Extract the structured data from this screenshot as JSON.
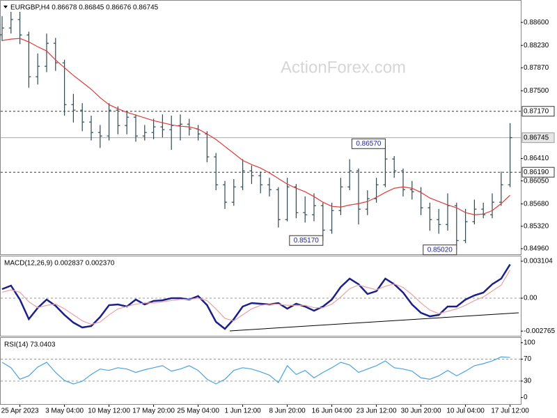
{
  "chart_data": [
    {
      "type": "ohlc",
      "title": "EURGBP,H4  0.86678 0.86845 0.86676 0.86745",
      "watermark": "ActionForex.com",
      "categories": [
        null,
        null,
        "25 Apr 2023",
        null,
        null,
        null,
        null,
        "3 May 04:00",
        null,
        null,
        null,
        null,
        "10 May 12:00",
        null,
        null,
        null,
        null,
        "17 May 20:00",
        null,
        null,
        null,
        null,
        "25 May 04:00",
        null,
        null,
        null,
        null,
        "1 Jun 12:00",
        null,
        null,
        null,
        null,
        "8 Jun 20:00",
        null,
        null,
        null,
        null,
        "16 Jun 04:00",
        null,
        null,
        null,
        null,
        "23 Jun 12:00",
        null,
        null,
        null,
        null,
        "30 Jun 20:00",
        null,
        null,
        null,
        null,
        "10 Jul 04:00",
        null,
        null,
        null,
        null,
        "17 Jul 12:00"
      ],
      "open": [
        0.884,
        0.8851,
        0.88645,
        0.88398,
        0.87726,
        0.87894,
        0.88264,
        0.8795,
        0.87277,
        0.87188,
        0.86997,
        0.86829,
        0.86773,
        0.87188,
        0.86941,
        0.87075,
        0.86773,
        0.86829,
        0.86919,
        0.86874,
        0.86941,
        0.86963,
        0.86885,
        0.86806,
        0.86437,
        0.85988,
        0.85708,
        0.85954,
        0.86212,
        0.86134,
        0.85988,
        0.8591,
        0.85428,
        0.85954,
        0.8554,
        0.85506,
        0.85652,
        0.85259,
        0.85573,
        0.85954,
        0.86212,
        0.85596,
        0.85764,
        0.85988,
        0.86403,
        0.86212,
        0.8591,
        0.85876,
        0.85618,
        0.85428,
        0.85349,
        0.85652,
        0.85091,
        0.85394,
        0.85596,
        0.85506,
        0.85708,
        0.85988
      ],
      "high": [
        0.887,
        0.889,
        0.8878,
        0.8845,
        0.881,
        0.8842,
        0.8835,
        0.88,
        0.8745,
        0.873,
        0.871,
        0.8695,
        0.873,
        0.8725,
        0.8718,
        0.8712,
        0.8695,
        0.8705,
        0.8712,
        0.871,
        0.8712,
        0.8705,
        0.8695,
        0.8685,
        0.865,
        0.8605,
        0.8608,
        0.864,
        0.863,
        0.862,
        0.861,
        0.8595,
        0.861,
        0.86,
        0.858,
        0.8585,
        0.857,
        0.857,
        0.861,
        0.864,
        0.8625,
        0.859,
        0.861,
        0.8657,
        0.8645,
        0.8625,
        0.8605,
        0.8595,
        0.857,
        0.856,
        0.8585,
        0.857,
        0.856,
        0.8575,
        0.857,
        0.8585,
        0.862,
        0.8698
      ],
      "low": [
        0.883,
        0.8842,
        0.8825,
        0.8755,
        0.876,
        0.878,
        0.8782,
        0.871,
        0.8699,
        0.8685,
        0.867,
        0.8658,
        0.867,
        0.868,
        0.868,
        0.8668,
        0.867,
        0.8672,
        0.8675,
        0.8655,
        0.867,
        0.8678,
        0.867,
        0.8635,
        0.859,
        0.856,
        0.8565,
        0.859,
        0.86,
        0.8585,
        0.858,
        0.853,
        0.854,
        0.8545,
        0.8538,
        0.854,
        0.8517,
        0.852,
        0.855,
        0.859,
        0.8535,
        0.855,
        0.857,
        0.8595,
        0.861,
        0.858,
        0.8575,
        0.855,
        0.8525,
        0.852,
        0.8525,
        0.8502,
        0.8505,
        0.8535,
        0.8545,
        0.8545,
        0.8565,
        0.8595
      ],
      "close": [
        0.8851,
        0.88645,
        0.88398,
        0.87726,
        0.87894,
        0.88264,
        0.8795,
        0.87277,
        0.87188,
        0.86997,
        0.86829,
        0.86773,
        0.87188,
        0.86941,
        0.87075,
        0.86773,
        0.86829,
        0.86919,
        0.86874,
        0.86941,
        0.86963,
        0.86885,
        0.86806,
        0.86437,
        0.85988,
        0.85708,
        0.85954,
        0.86212,
        0.86134,
        0.85988,
        0.8591,
        0.85428,
        0.85954,
        0.8554,
        0.85506,
        0.85652,
        0.85259,
        0.85573,
        0.85954,
        0.86212,
        0.85596,
        0.85764,
        0.85988,
        0.86403,
        0.86212,
        0.8591,
        0.85876,
        0.85618,
        0.85428,
        0.85349,
        0.85652,
        0.85091,
        0.85394,
        0.85596,
        0.85506,
        0.85708,
        0.85988,
        0.86745
      ],
      "color": "#2d4a54",
      "overlay": {
        "color": "#e03a3a",
        "values": [
          0.88309,
          0.88331,
          0.88342,
          0.88286,
          0.88208,
          0.8814,
          0.87995,
          0.87871,
          0.87748,
          0.87636,
          0.87524,
          0.87389,
          0.87277,
          0.8721,
          0.87154,
          0.87109,
          0.87064,
          0.87019,
          0.86986,
          0.86952,
          0.8693,
          0.86919,
          0.86885,
          0.86806,
          0.86717,
          0.86605,
          0.86493,
          0.8638,
          0.86313,
          0.86257,
          0.86179,
          0.86089,
          0.85999,
          0.85932,
          0.85876,
          0.85798,
          0.85708,
          0.85641,
          0.85629,
          0.85663,
          0.85685,
          0.85719,
          0.85786,
          0.85865,
          0.85932,
          0.85954,
          0.85932,
          0.85865,
          0.85775,
          0.85719,
          0.85663,
          0.85618,
          0.8554,
          0.85506,
          0.85517,
          0.85573,
          0.85685,
          0.8582
        ]
      },
      "ylim": [
        0.8487,
        0.8896
      ],
      "yticks": [
        {
          "value": 0.886,
          "label": "0.88600"
        },
        {
          "value": 0.8823,
          "label": "0.88230"
        },
        {
          "value": 0.8787,
          "label": "0.87870"
        },
        {
          "value": 0.875,
          "label": "0.87500"
        },
        {
          "value": 0.8641,
          "label": "0.86410"
        },
        {
          "value": 0.8605,
          "label": "0.86050"
        },
        {
          "value": 0.8568,
          "label": "0.85680"
        },
        {
          "value": 0.8532,
          "label": "0.85320"
        },
        {
          "value": 0.8496,
          "label": "0.84960"
        }
      ],
      "levels": [
        {
          "value": 0.8717,
          "label": "0.87170"
        },
        {
          "value": 0.8619,
          "label": "0.86190"
        }
      ],
      "current": {
        "value": 0.86745,
        "label": "0.86745"
      },
      "annotations": [
        {
          "bar": 43,
          "value": 0.8657,
          "label": "0.86570"
        },
        {
          "bar": 36,
          "value": 0.8517,
          "label": "0.85170"
        },
        {
          "bar": 51,
          "value": 0.8502,
          "label": "0.85020"
        }
      ]
    },
    {
      "type": "line",
      "title": "MACD(12,26,9) 0.002837 0.002370",
      "series": [
        {
          "color": "#1c1f8a",
          "values": [
            0.000761,
            0.001054,
            -0.000117,
            -0.001757,
            -0.00082,
            -0.000117,
            -0.000644,
            -0.001406,
            -0.00205,
            -0.00246,
            -0.002343,
            -0.001581,
            -0.000586,
            -0.000527,
            -0.000703,
            -0.000117,
            -0.000527,
            -0.000234,
            -0.000176,
            0,
            0,
            -0.000117,
            0.000176,
            -0.000586,
            -0.001991,
            -0.002577,
            -0.001757,
            -0.000703,
            -0.00041,
            -0.000469,
            -0.000527,
            -0.00041,
            -0.000879,
            -0.000469,
            -0.000703,
            -0.001054,
            -0.000703,
            -0.000117,
            0.000937,
            0.00164,
            0.001171,
            0.000351,
            0.000586,
            0.00164,
            0.001171,
            0.000469,
            -0.000527,
            -0.00123,
            -0.001523,
            -0.001406,
            -0.000703,
            -0.000703,
            -0.000117,
            0.000234,
            0.000469,
            0.001171,
            0.00164,
            0.002837
          ]
        },
        {
          "color": "#e8a2a2",
          "values": [
            0.0005,
            0.0007,
            0.0005,
            -0.0003,
            -0.0008,
            -0.0006,
            -0.0005,
            -0.0009,
            -0.0014,
            -0.0019,
            -0.0022,
            -0.002,
            -0.0014,
            -0.0009,
            -0.0007,
            -0.0005,
            -0.0004,
            -0.0004,
            -0.0003,
            -0.0002,
            -0.0001,
            -0.0001,
            0,
            -0.0002,
            -0.0009,
            -0.0017,
            -0.0019,
            -0.0014,
            -0.0009,
            -0.0006,
            -0.0005,
            -0.0005,
            -0.0006,
            -0.0006,
            -0.0006,
            -0.0008,
            -0.0008,
            -0.0005,
            0.0001,
            0.0008,
            0.0011,
            0.0009,
            0.0007,
            0.001,
            0.0012,
            0.0009,
            0.0003,
            -0.0004,
            -0.001,
            -0.0013,
            -0.0011,
            -0.0009,
            -0.0006,
            -0.0002,
            0.0001,
            0.0006,
            0.0011,
            0.00237
          ]
        }
      ],
      "ylim": [
        -0.00316,
        0.00357
      ],
      "yticks": [
        -0.002765,
        {
          "value": 0,
          "label": "0.00"
        },
        0.003104
      ],
      "levels": [
        0
      ]
    },
    {
      "type": "line",
      "title": "RSI(14) 73.0403",
      "series": [
        {
          "color": "#4aa3df",
          "values": [
            64.2,
            54.3,
            33.3,
            39.5,
            55.6,
            64.2,
            45.7,
            30.9,
            24.7,
            29.6,
            42.0,
            51.9,
            49.4,
            54.3,
            51.9,
            45.7,
            50.6,
            54.3,
            58.0,
            48.1,
            51.9,
            58.0,
            49.4,
            33.3,
            24.7,
            33.3,
            49.4,
            54.3,
            51.9,
            46.9,
            40.7,
            27.2,
            58.0,
            42.0,
            49.4,
            35.8,
            45.7,
            54.3,
            64.2,
            59.3,
            45.7,
            51.9,
            58.0,
            66.7,
            54.3,
            51.9,
            48.1,
            35.8,
            33.3,
            39.5,
            49.4,
            39.5,
            48.1,
            58.0,
            61.7,
            66.7,
            74.1,
            73.0403
          ]
        }
      ],
      "ylim": [
        -12,
        110
      ],
      "yticks": [
        0,
        30,
        70,
        100
      ],
      "levels": [
        30,
        70
      ]
    }
  ]
}
